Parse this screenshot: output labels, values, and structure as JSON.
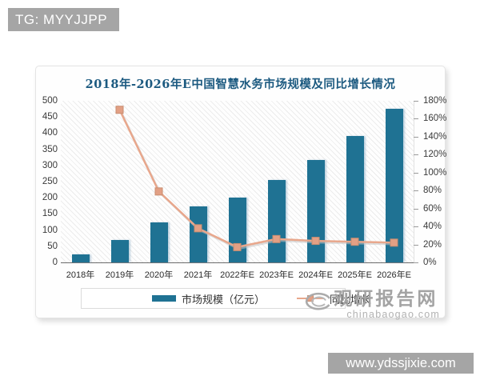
{
  "overlays": {
    "tg_label": "TG: MYYJJPP",
    "site_label": "www.ydssjixie.com"
  },
  "watermark": {
    "name": "观研报告网",
    "domain": "chinabaogao.com",
    "color": "#a3a3a3"
  },
  "chart_data": {
    "type": "bar",
    "combo": true,
    "title": "2018年-2026年E中国智慧水务市场规模及同比增长情况",
    "title_color": "#1c5a80",
    "categories": [
      "2018年",
      "2019年",
      "2020年",
      "2021年",
      "2022年E",
      "2023年E",
      "2024年E",
      "2025年E",
      "2026年E"
    ],
    "series": [
      {
        "name": "市场规模（亿元）",
        "type": "bar",
        "axis": "left",
        "color": "#1f7293",
        "values": [
          25,
          70,
          125,
          173,
          200,
          256,
          318,
          390,
          476
        ]
      },
      {
        "name": "同比增长",
        "type": "line",
        "axis": "right",
        "unit": "%",
        "color": "#e8a78c",
        "marker_fill": "#e2a085",
        "marker_border": "#c98d70",
        "values": [
          null,
          170,
          79,
          38,
          17,
          26,
          24,
          23,
          22
        ]
      }
    ],
    "left_axis": {
      "min": 0,
      "max": 500,
      "step": 50,
      "ticks": [
        "0",
        "50",
        "100",
        "150",
        "200",
        "250",
        "300",
        "350",
        "400",
        "450",
        "500"
      ]
    },
    "right_axis": {
      "min": 0,
      "max": 180,
      "step": 20,
      "ticks": [
        "0%",
        "20%",
        "40%",
        "60%",
        "80%",
        "100%",
        "120%",
        "140%",
        "160%",
        "180%"
      ]
    },
    "legend_position": "bottom",
    "grid": false,
    "plot_background": "diagonal-hatch"
  }
}
